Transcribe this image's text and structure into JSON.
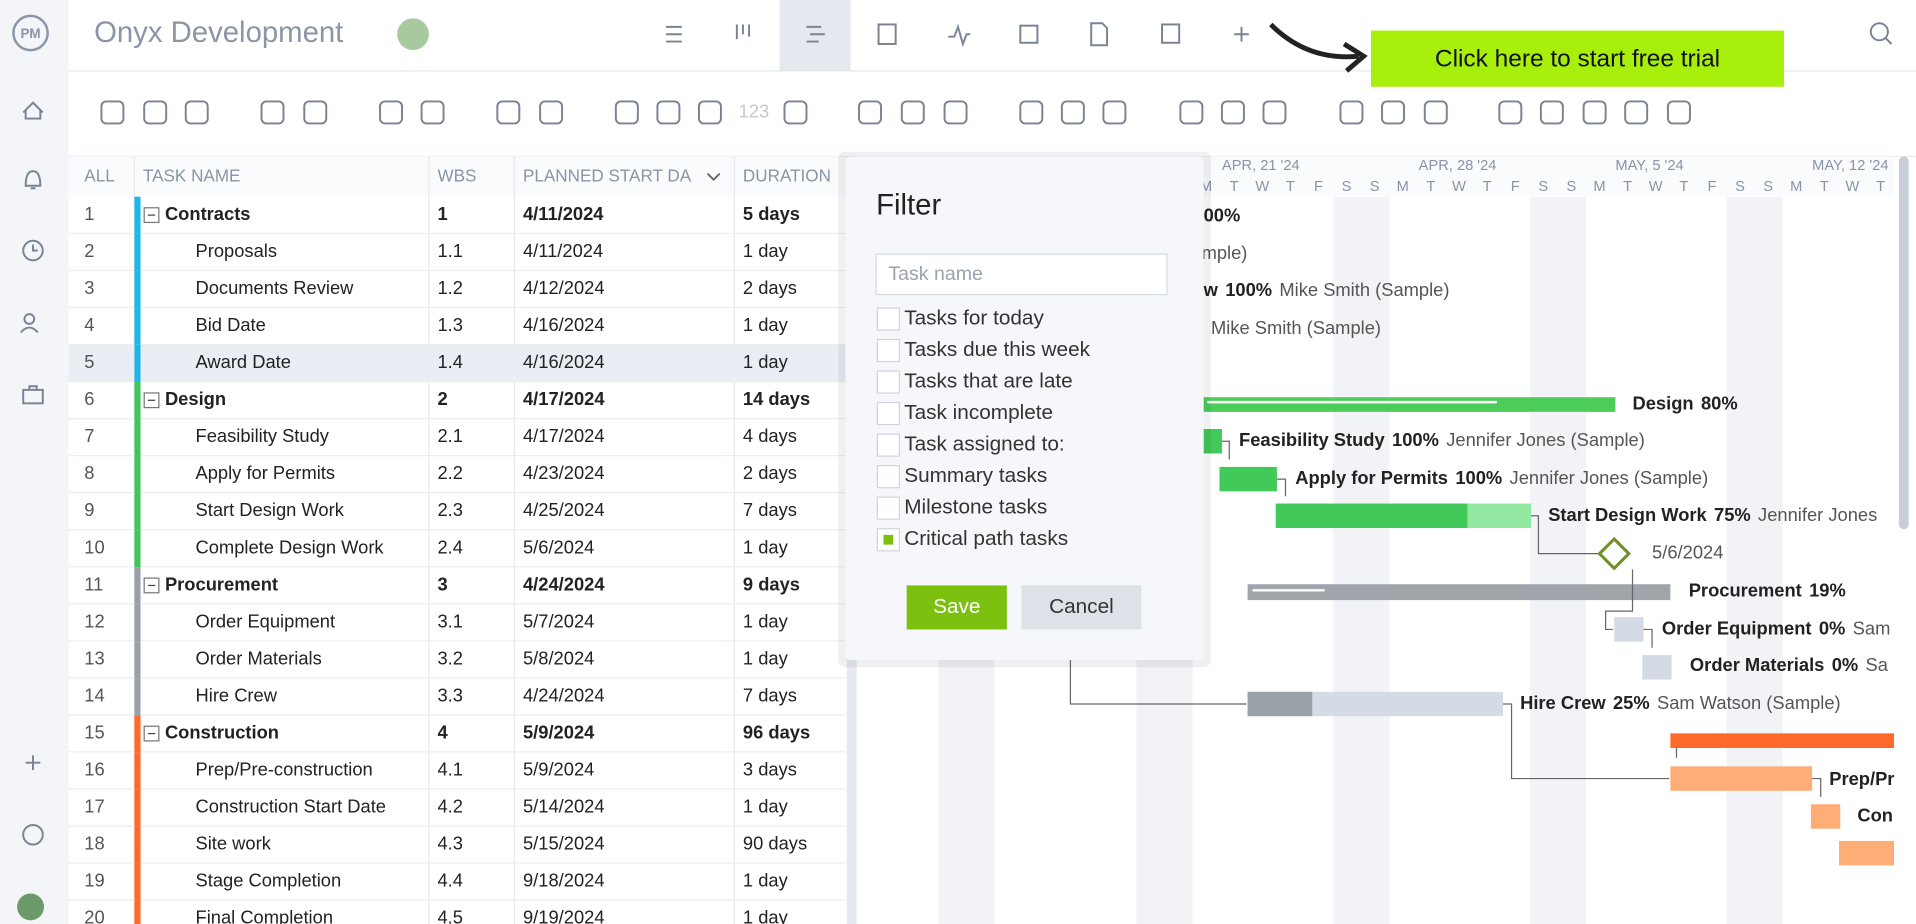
{
  "header": {
    "title": "Onyx Development",
    "cta": "Click here to start free trial"
  },
  "toolbar": {
    "number_label": "123"
  },
  "table": {
    "columns": [
      "ALL",
      "TASK NAME",
      "WBS",
      "PLANNED START DA",
      "DURATION"
    ],
    "rows": [
      [
        "1",
        "Contracts",
        "1",
        "4/11/2024",
        "5 days"
      ],
      [
        "2",
        "Proposals",
        "1.1",
        "4/11/2024",
        "1 day"
      ],
      [
        "3",
        "Documents Review",
        "1.2",
        "4/12/2024",
        "2 days"
      ],
      [
        "4",
        "Bid Date",
        "1.3",
        "4/16/2024",
        "1 day"
      ],
      [
        "5",
        "Award Date",
        "1.4",
        "4/16/2024",
        "1 day"
      ],
      [
        "6",
        "Design",
        "2",
        "4/17/2024",
        "14 days"
      ],
      [
        "7",
        "Feasibility Study",
        "2.1",
        "4/17/2024",
        "4 days"
      ],
      [
        "8",
        "Apply for Permits",
        "2.2",
        "4/23/2024",
        "2 days"
      ],
      [
        "9",
        "Start Design Work",
        "2.3",
        "4/25/2024",
        "7 days"
      ],
      [
        "10",
        "Complete Design Work",
        "2.4",
        "5/6/2024",
        "1 day"
      ],
      [
        "11",
        "Procurement",
        "3",
        "4/24/2024",
        "9 days"
      ],
      [
        "12",
        "Order Equipment",
        "3.1",
        "5/7/2024",
        "1 day"
      ],
      [
        "13",
        "Order Materials",
        "3.2",
        "5/8/2024",
        "1 day"
      ],
      [
        "14",
        "Hire Crew",
        "3.3",
        "4/24/2024",
        "7 days"
      ],
      [
        "15",
        "Construction",
        "4",
        "5/9/2024",
        "96 days"
      ],
      [
        "16",
        "Prep/Pre-construction",
        "4.1",
        "5/9/2024",
        "3 days"
      ],
      [
        "17",
        "Construction Start Date",
        "4.2",
        "5/14/2024",
        "1 day"
      ],
      [
        "18",
        "Site work",
        "4.3",
        "5/15/2024",
        "90 days"
      ],
      [
        "19",
        "Stage Completion",
        "4.4",
        "9/18/2024",
        "1 day"
      ],
      [
        "20",
        "Final Completion",
        "4.5",
        "9/19/2024",
        "1 day"
      ]
    ]
  },
  "filter": {
    "title": "Filter",
    "placeholder": "Task name",
    "options": [
      {
        "label": "Tasks for today",
        "checked": false
      },
      {
        "label": "Tasks due this week",
        "checked": false
      },
      {
        "label": "Tasks that are late",
        "checked": false
      },
      {
        "label": "Task incomplete",
        "checked": false
      },
      {
        "label": "Task assigned to:",
        "checked": false
      },
      {
        "label": "Summary tasks",
        "checked": false
      },
      {
        "label": "Milestone tasks",
        "checked": false
      },
      {
        "label": "Critical path tasks",
        "checked": true
      }
    ],
    "save": "Save",
    "cancel": "Cancel"
  },
  "gantt": {
    "weeks": [
      "APR, 21 '24",
      "APR, 28 '24",
      "MAY, 5 '24",
      "MAY, 12 '24"
    ],
    "days": [
      "M",
      "T",
      "W",
      "T",
      "F",
      "S",
      "S",
      "M",
      "T",
      "W",
      "T",
      "F",
      "S",
      "S",
      "M",
      "T",
      "W",
      "T",
      "F",
      "S",
      "S",
      "M",
      "T",
      "W",
      "T"
    ],
    "labels": [
      {
        "percent": "00%"
      },
      {
        "assignee": "ample)"
      },
      {
        "name": "w",
        "percent": "100%",
        "assignee": "Mike Smith (Sample)"
      },
      {
        "assignee": "Mike Smith (Sample)"
      },
      {
        "name": "Design",
        "percent": "80%"
      },
      {
        "name": "Feasibility Study",
        "percent": "100%",
        "assignee": "Jennifer Jones (Sample)"
      },
      {
        "name": "Apply for Permits",
        "percent": "100%",
        "assignee": "Jennifer Jones (Sample)"
      },
      {
        "name": "Start Design Work",
        "percent": "75%",
        "assignee": "Jennifer Jones"
      },
      {
        "assignee": "5/6/2024"
      },
      {
        "name": "Procurement",
        "percent": "19%"
      },
      {
        "name": "Order Equipment",
        "percent": "0%",
        "assignee": "Sam"
      },
      {
        "name": "Order Materials",
        "percent": "0%",
        "assignee": "Sa"
      },
      {
        "name": "Hire Crew",
        "percent": "25%",
        "assignee": "Sam Watson (Sample)"
      },
      {
        "name": "Prep/Pr"
      },
      {
        "name": "Con"
      }
    ]
  }
}
